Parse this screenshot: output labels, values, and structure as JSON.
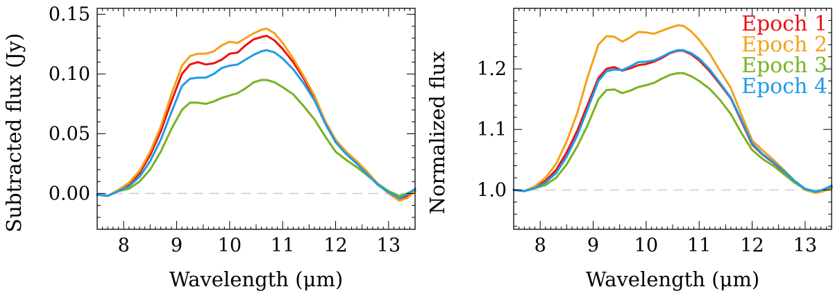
{
  "chart_data": [
    {
      "type": "line",
      "xlabel": "Wavelength (μm)",
      "ylabel": "Subtracted flux (Jy)",
      "xlim": [
        7.5,
        13.5
      ],
      "ylim": [
        -0.03,
        0.155
      ],
      "xticks": [
        8,
        9,
        10,
        11,
        12,
        13
      ],
      "xtick_labels": [
        "8",
        "9",
        "10",
        "11",
        "12",
        "13"
      ],
      "yticks": [
        0.0,
        0.05,
        0.1,
        0.15
      ],
      "ytick_labels": [
        "0.00",
        "0.05",
        "0.10",
        "0.15"
      ],
      "reference_line": 0.0,
      "legend": null,
      "series": [
        {
          "color": "#ee1111",
          "x": [
            7.5,
            7.7,
            7.9,
            8.1,
            8.3,
            8.5,
            8.7,
            8.9,
            9.1,
            9.25,
            9.4,
            9.55,
            9.7,
            9.85,
            10.0,
            10.15,
            10.3,
            10.45,
            10.6,
            10.7,
            10.85,
            11.0,
            11.2,
            11.4,
            11.6,
            11.8,
            12.0,
            12.2,
            12.4,
            12.6,
            12.8,
            13.0,
            13.2,
            13.35,
            13.5
          ],
          "y": [
            -0.001,
            -0.002,
            0.002,
            0.007,
            0.017,
            0.032,
            0.052,
            0.077,
            0.1,
            0.108,
            0.11,
            0.108,
            0.109,
            0.112,
            0.117,
            0.118,
            0.124,
            0.129,
            0.131,
            0.132,
            0.128,
            0.121,
            0.11,
            0.096,
            0.08,
            0.059,
            0.043,
            0.033,
            0.026,
            0.017,
            0.008,
            0.001,
            -0.005,
            -0.002,
            0.004
          ]
        },
        {
          "color": "#f5a01a",
          "x": [
            7.5,
            7.7,
            7.9,
            8.1,
            8.3,
            8.5,
            8.7,
            8.9,
            9.1,
            9.25,
            9.4,
            9.55,
            9.7,
            9.85,
            10.0,
            10.15,
            10.3,
            10.45,
            10.6,
            10.7,
            10.85,
            11.0,
            11.2,
            11.4,
            11.6,
            11.8,
            12.0,
            12.2,
            12.4,
            12.6,
            12.8,
            13.0,
            13.2,
            13.35,
            13.5
          ],
          "y": [
            -0.001,
            -0.002,
            0.003,
            0.009,
            0.019,
            0.035,
            0.056,
            0.083,
            0.107,
            0.115,
            0.117,
            0.117,
            0.119,
            0.124,
            0.127,
            0.126,
            0.13,
            0.134,
            0.137,
            0.138,
            0.134,
            0.126,
            0.113,
            0.098,
            0.082,
            0.061,
            0.045,
            0.035,
            0.027,
            0.018,
            0.008,
            0.0,
            -0.006,
            -0.004,
            0.002
          ]
        },
        {
          "color": "#77b31f",
          "x": [
            7.5,
            7.7,
            7.9,
            8.1,
            8.3,
            8.5,
            8.7,
            8.9,
            9.1,
            9.25,
            9.4,
            9.55,
            9.7,
            9.85,
            10.0,
            10.15,
            10.3,
            10.45,
            10.6,
            10.7,
            10.85,
            11.0,
            11.2,
            11.4,
            11.6,
            11.8,
            12.0,
            12.2,
            12.4,
            12.6,
            12.8,
            13.0,
            13.2,
            13.35,
            13.5
          ],
          "y": [
            -0.001,
            -0.002,
            0.002,
            0.004,
            0.01,
            0.02,
            0.035,
            0.054,
            0.07,
            0.076,
            0.076,
            0.075,
            0.077,
            0.08,
            0.082,
            0.084,
            0.088,
            0.093,
            0.095,
            0.095,
            0.093,
            0.089,
            0.083,
            0.073,
            0.062,
            0.048,
            0.035,
            0.028,
            0.022,
            0.015,
            0.008,
            0.002,
            -0.002,
            0.0,
            0.003
          ]
        },
        {
          "color": "#1e9be6",
          "x": [
            7.5,
            7.7,
            7.9,
            8.1,
            8.3,
            8.5,
            8.7,
            8.9,
            9.1,
            9.25,
            9.4,
            9.55,
            9.7,
            9.85,
            10.0,
            10.15,
            10.3,
            10.45,
            10.6,
            10.7,
            10.85,
            11.0,
            11.2,
            11.4,
            11.6,
            11.8,
            12.0,
            12.2,
            12.4,
            12.6,
            12.8,
            13.0,
            13.2,
            13.35,
            13.5
          ],
          "y": [
            -0.001,
            -0.002,
            0.002,
            0.006,
            0.014,
            0.027,
            0.045,
            0.068,
            0.09,
            0.096,
            0.097,
            0.097,
            0.1,
            0.105,
            0.107,
            0.108,
            0.112,
            0.116,
            0.119,
            0.12,
            0.118,
            0.113,
            0.104,
            0.092,
            0.078,
            0.059,
            0.043,
            0.033,
            0.025,
            0.016,
            0.007,
            0.001,
            -0.004,
            -0.001,
            0.004
          ]
        }
      ]
    },
    {
      "type": "line",
      "xlabel": "Wavelength (μm)",
      "ylabel": "Normalized flux",
      "xlim": [
        7.5,
        13.5
      ],
      "ylim": [
        0.935,
        1.3
      ],
      "xticks": [
        8,
        9,
        10,
        11,
        12,
        13
      ],
      "xtick_labels": [
        "8",
        "9",
        "10",
        "11",
        "12",
        "13"
      ],
      "yticks": [
        1.0,
        1.1,
        1.2
      ],
      "ytick_labels": [
        "1.0",
        "1.1",
        "1.2"
      ],
      "reference_line": 1.0,
      "legend": {
        "position": "top-right",
        "entries": [
          {
            "label": "Epoch 1",
            "color": "#ee1111"
          },
          {
            "label": "Epoch 2",
            "color": "#f5a01a"
          },
          {
            "label": "Epoch 3",
            "color": "#77b31f"
          },
          {
            "label": "Epoch 4",
            "color": "#1e9be6"
          }
        ]
      },
      "series": [
        {
          "name": "Epoch 1",
          "color": "#ee1111",
          "x": [
            7.5,
            7.7,
            7.9,
            8.1,
            8.3,
            8.5,
            8.7,
            8.9,
            9.1,
            9.25,
            9.4,
            9.55,
            9.7,
            9.85,
            10.0,
            10.15,
            10.3,
            10.45,
            10.6,
            10.7,
            10.85,
            11.0,
            11.2,
            11.4,
            11.6,
            11.8,
            12.0,
            12.2,
            12.4,
            12.6,
            12.8,
            13.0,
            13.2,
            13.35,
            13.5
          ],
          "y": [
            1.0,
            0.998,
            1.004,
            1.015,
            1.033,
            1.062,
            1.098,
            1.142,
            1.185,
            1.2,
            1.203,
            1.197,
            1.201,
            1.206,
            1.208,
            1.212,
            1.218,
            1.226,
            1.23,
            1.23,
            1.224,
            1.214,
            1.196,
            1.174,
            1.151,
            1.113,
            1.075,
            1.058,
            1.045,
            1.03,
            1.014,
            1.001,
            0.996,
            1.0,
            1.006
          ]
        },
        {
          "name": "Epoch 2",
          "color": "#f5a01a",
          "x": [
            7.5,
            7.7,
            7.9,
            8.1,
            8.3,
            8.5,
            8.7,
            8.9,
            9.1,
            9.25,
            9.4,
            9.55,
            9.7,
            9.85,
            10.0,
            10.15,
            10.3,
            10.45,
            10.6,
            10.7,
            10.85,
            11.0,
            11.2,
            11.4,
            11.6,
            11.8,
            12.0,
            12.2,
            12.4,
            12.6,
            12.8,
            13.0,
            13.2,
            13.35,
            13.5
          ],
          "y": [
            1.0,
            0.998,
            1.006,
            1.02,
            1.043,
            1.08,
            1.127,
            1.188,
            1.24,
            1.254,
            1.253,
            1.245,
            1.252,
            1.261,
            1.26,
            1.258,
            1.263,
            1.268,
            1.272,
            1.271,
            1.262,
            1.248,
            1.225,
            1.196,
            1.168,
            1.124,
            1.082,
            1.065,
            1.05,
            1.033,
            1.015,
            1.0,
            0.995,
            0.998,
            1.003
          ]
        },
        {
          "name": "Epoch 3",
          "color": "#77b31f",
          "x": [
            7.5,
            7.7,
            7.9,
            8.1,
            8.3,
            8.5,
            8.7,
            8.9,
            9.1,
            9.25,
            9.4,
            9.55,
            9.7,
            9.85,
            10.0,
            10.15,
            10.3,
            10.45,
            10.6,
            10.7,
            10.85,
            11.0,
            11.2,
            11.4,
            11.6,
            11.8,
            12.0,
            12.2,
            12.4,
            12.6,
            12.8,
            13.0,
            13.2,
            13.35,
            13.5
          ],
          "y": [
            1.0,
            0.998,
            1.003,
            1.008,
            1.02,
            1.042,
            1.072,
            1.108,
            1.15,
            1.165,
            1.166,
            1.16,
            1.164,
            1.17,
            1.173,
            1.177,
            1.184,
            1.19,
            1.193,
            1.193,
            1.188,
            1.18,
            1.167,
            1.148,
            1.125,
            1.094,
            1.066,
            1.051,
            1.04,
            1.026,
            1.012,
            1.001,
            0.998,
            1.0,
            1.005
          ]
        },
        {
          "name": "Epoch 4",
          "color": "#1e9be6",
          "x": [
            7.5,
            7.7,
            7.9,
            8.1,
            8.3,
            8.5,
            8.7,
            8.9,
            9.1,
            9.25,
            9.4,
            9.55,
            9.7,
            9.85,
            10.0,
            10.15,
            10.3,
            10.45,
            10.6,
            10.7,
            10.85,
            11.0,
            11.2,
            11.4,
            11.6,
            11.8,
            12.0,
            12.2,
            12.4,
            12.6,
            12.8,
            13.0,
            13.2,
            13.35,
            13.5
          ],
          "y": [
            1.0,
            0.998,
            1.003,
            1.012,
            1.028,
            1.055,
            1.09,
            1.135,
            1.18,
            1.196,
            1.199,
            1.198,
            1.204,
            1.211,
            1.212,
            1.214,
            1.22,
            1.227,
            1.231,
            1.231,
            1.226,
            1.217,
            1.199,
            1.176,
            1.152,
            1.115,
            1.077,
            1.059,
            1.046,
            1.031,
            1.015,
            1.002,
            0.997,
            1.001,
            1.007
          ]
        }
      ]
    }
  ]
}
